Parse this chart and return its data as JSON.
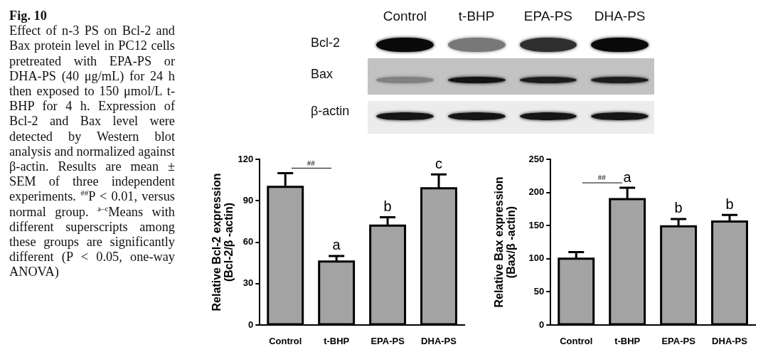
{
  "chart_data": [
    {
      "type": "other",
      "title": "Fig. 10",
      "subtitle": "Effect of n-3 PS on Bcl-2 and Bax protein level in PC12 cells pretreated with EPA-PS or DHA-PS (40 μg/mL) for 24 h then exposed to 150 μmol/L t-BHP for 4 h. Expression of Bcl-2 and Bax level were detected by Western blot analysis and normalized against β-actin. Results are mean ± SEM of three independent experiments. $^{##}$P < 0.01, versus normal group. $^{a–c}$Means with different superscripts among these groups are significantly different (P < 0.05, one-way ANOVA)"
    },
    {
      "type": "other",
      "categories": [
        "Control",
        "t-BHP",
        "EPA-PS",
        "DHA-PS"
      ],
      "y_categories": [
        "Bcl-2",
        "Bax",
        "β-actin"
      ]
    },
    {
      "type": "bar",
      "categories": [
        "Control",
        "t-BHP",
        "EPA-PS",
        "DHA-PS"
      ],
      "values": [
        100,
        46,
        72,
        99
      ],
      "errors": [
        [
          100,
          110
        ],
        [
          46,
          50
        ],
        [
          72,
          78
        ],
        [
          99,
          109
        ]
      ],
      "color": "#a3a3a3",
      "ylabel": "Relative Bcl-2 expression\n(Bcl-2/β -actin)",
      "ylim": [
        0,
        120
      ],
      "yticks": [
        0,
        30,
        60,
        90,
        120
      ],
      "annotations": [
        "##",
        {
          "text": "a",
          "x": "t-BHP",
          "y": 50
        },
        {
          "text": "b",
          "x": "EPA-PS",
          "y": 78
        },
        {
          "text": "c",
          "x": "DHA-PS",
          "y": 109
        }
      ]
    },
    {
      "type": "bar",
      "categories": [
        "Control",
        "t-BHP",
        "EPA-PS",
        "DHA-PS"
      ],
      "values": [
        100,
        190,
        149,
        156
      ],
      "errors": [
        [
          100,
          110
        ],
        [
          190,
          207
        ],
        [
          149,
          160
        ],
        [
          156,
          166
        ]
      ],
      "color": "#a3a3a3",
      "ylabel": "Relative Bax expression\n(Bax/β -actin)",
      "ylim": [
        0,
        250
      ],
      "yticks": [
        0,
        50,
        100,
        150,
        200,
        250
      ],
      "annotations": [
        "##",
        {
          "text": "a",
          "x": "t-BHP",
          "y": 207
        },
        {
          "text": "b",
          "x": "EPA-PS",
          "y": 160
        },
        {
          "text": "b",
          "x": "DHA-PS",
          "y": 166
        }
      ]
    }
  ]
}
